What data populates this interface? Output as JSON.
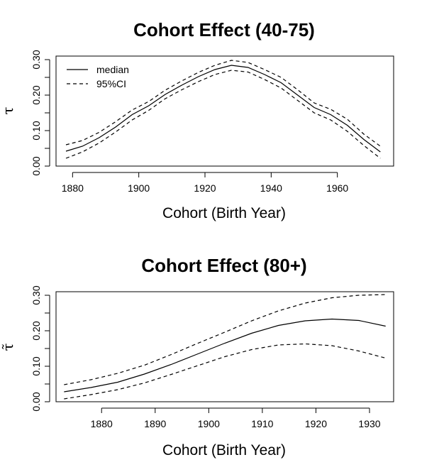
{
  "chart_data": [
    {
      "type": "line",
      "title": "Cohort Effect (40-75)",
      "xlabel": "Cohort (Birth Year)",
      "ylabel": "τ",
      "xlim": [
        1875,
        1977
      ],
      "ylim": [
        0,
        0.31
      ],
      "xticks": [
        1880,
        1900,
        1920,
        1940,
        1960
      ],
      "yticks": [
        0.0,
        0.1,
        0.2,
        0.3
      ],
      "ytick_labels": [
        "0.00",
        "0.10",
        "0.20",
        "0.30"
      ],
      "legend": {
        "position": "top-left",
        "entries": [
          "median",
          "95%CI"
        ]
      },
      "x": [
        1878,
        1883,
        1888,
        1893,
        1898,
        1903,
        1908,
        1913,
        1918,
        1923,
        1928,
        1933,
        1938,
        1943,
        1948,
        1953,
        1958,
        1963,
        1968,
        1973
      ],
      "series": [
        {
          "name": "median",
          "style": "solid",
          "values": [
            0.042,
            0.056,
            0.08,
            0.11,
            0.145,
            0.17,
            0.202,
            0.228,
            0.252,
            0.272,
            0.284,
            0.278,
            0.258,
            0.235,
            0.2,
            0.165,
            0.145,
            0.115,
            0.075,
            0.04
          ]
        },
        {
          "name": "95%CI",
          "style": "dashed",
          "values": [
            0.06,
            0.072,
            0.095,
            0.125,
            0.158,
            0.182,
            0.214,
            0.24,
            0.264,
            0.284,
            0.298,
            0.292,
            0.272,
            0.25,
            0.215,
            0.178,
            0.16,
            0.132,
            0.09,
            0.056
          ]
        },
        {
          "name": "95%CI",
          "style": "dashed",
          "values": [
            0.022,
            0.04,
            0.065,
            0.096,
            0.13,
            0.157,
            0.19,
            0.215,
            0.238,
            0.258,
            0.27,
            0.265,
            0.244,
            0.22,
            0.185,
            0.15,
            0.13,
            0.098,
            0.058,
            0.022
          ]
        }
      ]
    },
    {
      "type": "line",
      "title": "Cohort Effect (80+)",
      "xlabel": "Cohort (Birth Year)",
      "ylabel": "τ̃",
      "xlim": [
        1871.5,
        1934.5
      ],
      "ylim": [
        0,
        0.31
      ],
      "xticks": [
        1880,
        1890,
        1900,
        1910,
        1920,
        1930
      ],
      "yticks": [
        0.0,
        0.1,
        0.2,
        0.3
      ],
      "ytick_labels": [
        "0.00",
        "0.10",
        "0.20",
        "0.30"
      ],
      "x": [
        1873,
        1878,
        1883,
        1888,
        1893,
        1898,
        1903,
        1908,
        1913,
        1918,
        1923,
        1928,
        1933
      ],
      "series": [
        {
          "name": "median",
          "style": "solid",
          "values": [
            0.028,
            0.04,
            0.055,
            0.078,
            0.105,
            0.135,
            0.165,
            0.193,
            0.215,
            0.228,
            0.233,
            0.229,
            0.213
          ]
        },
        {
          "name": "95%CI",
          "style": "dashed",
          "values": [
            0.048,
            0.062,
            0.08,
            0.103,
            0.133,
            0.165,
            0.196,
            0.228,
            0.256,
            0.278,
            0.293,
            0.3,
            0.302
          ]
        },
        {
          "name": "95%CI",
          "style": "dashed",
          "values": [
            0.008,
            0.02,
            0.034,
            0.053,
            0.077,
            0.102,
            0.127,
            0.147,
            0.16,
            0.163,
            0.158,
            0.143,
            0.123
          ]
        }
      ]
    }
  ]
}
